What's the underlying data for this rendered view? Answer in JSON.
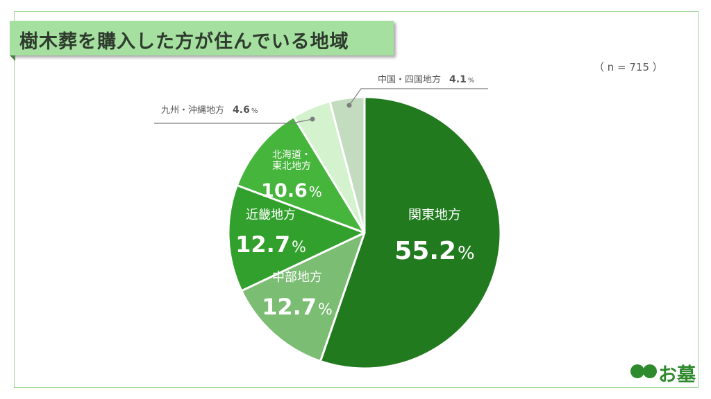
{
  "title": "樹木葬を購入した方が住んでいる地域",
  "sample_note": "（ n = 715 ）",
  "logo_text": "お墓",
  "logo_icon": "ii-circles-icon",
  "colors": {
    "frame": "#9fd59a",
    "title_bg": "#a6e0a0"
  },
  "chart_data": {
    "type": "pie",
    "start_angle_deg": 0,
    "direction": "clockwise",
    "slices": [
      {
        "label": "関東地方",
        "value": 55.2,
        "value_text": "55.2",
        "unit": "%",
        "color": "#227a1f",
        "label_position": "inside"
      },
      {
        "label": "中部地方",
        "value": 12.7,
        "value_text": "12.7",
        "unit": "%",
        "color": "#7bbd73",
        "label_position": "inside"
      },
      {
        "label": "近畿地方",
        "value": 12.7,
        "value_text": "12.7",
        "unit": "%",
        "color": "#32a02c",
        "label_position": "inside"
      },
      {
        "label": "北海道・東北地方",
        "label_lines": [
          "北海道・",
          "東北地方"
        ],
        "value": 10.6,
        "value_text": "10.6",
        "unit": "%",
        "color": "#46b53c",
        "label_position": "inside"
      },
      {
        "label": "九州・沖縄地方",
        "value": 4.6,
        "value_text": "4.6",
        "unit": "%",
        "color": "#d4f2cd",
        "label_position": "outside-left"
      },
      {
        "label": "中国・四国地方",
        "value": 4.1,
        "value_text": "4.1",
        "unit": "%",
        "color": "#c3dcbf",
        "label_position": "outside-right"
      }
    ]
  }
}
